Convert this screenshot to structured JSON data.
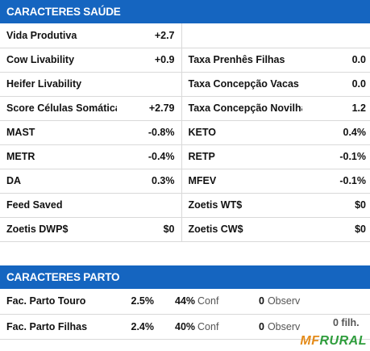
{
  "saude": {
    "title": "CARACTERES SAÚDE",
    "rows": [
      {
        "l1": "Vida Produtiva",
        "v1": "+2.7",
        "l2": "",
        "v2": ""
      },
      {
        "l1": "Cow Livability",
        "v1": "+0.9",
        "l2": "Taxa Prenhês Filhas",
        "v2": "0.0"
      },
      {
        "l1": "Heifer Livability",
        "v1": "",
        "l2": "Taxa Concepção Vacas",
        "v2": "0.0"
      },
      {
        "l1": "Score Células Somáticas",
        "v1": "+2.79",
        "l2": "Taxa Concepção Novilhas",
        "v2": "1.2"
      },
      {
        "l1": "MAST",
        "v1": "-0.8%",
        "l2": "KETO",
        "v2": "0.4%"
      },
      {
        "l1": "METR",
        "v1": "-0.4%",
        "l2": "RETP",
        "v2": "-0.1%"
      },
      {
        "l1": "DA",
        "v1": "0.3%",
        "l2": "MFEV",
        "v2": "-0.1%"
      },
      {
        "l1": "Feed Saved",
        "v1": "",
        "l2": "Zoetis WT$",
        "v2": "$0"
      },
      {
        "l1": "Zoetis DWP$",
        "v1": "$0",
        "l2": "Zoetis CW$",
        "v2": "$0"
      }
    ]
  },
  "parto": {
    "title": "CARACTERES PARTO",
    "rows": [
      {
        "label": "Fac. Parto Touro",
        "value": "2.5%",
        "conf_pct": "44%",
        "conf_label": "Conf",
        "observ_count": "0",
        "observ_label": "Observ",
        "extra": ""
      },
      {
        "label": "Fac. Parto Filhas",
        "value": "2.4%",
        "conf_pct": "40%",
        "conf_label": "Conf",
        "observ_count": "0",
        "observ_label": "Observ",
        "extra": "0 filh."
      }
    ]
  },
  "watermark": {
    "mf": "MF",
    "rural": "RURAL"
  },
  "colors": {
    "header_bg": "#1565c0",
    "logo_mf": "#e48b1a",
    "logo_rural": "#2e9d3c"
  }
}
